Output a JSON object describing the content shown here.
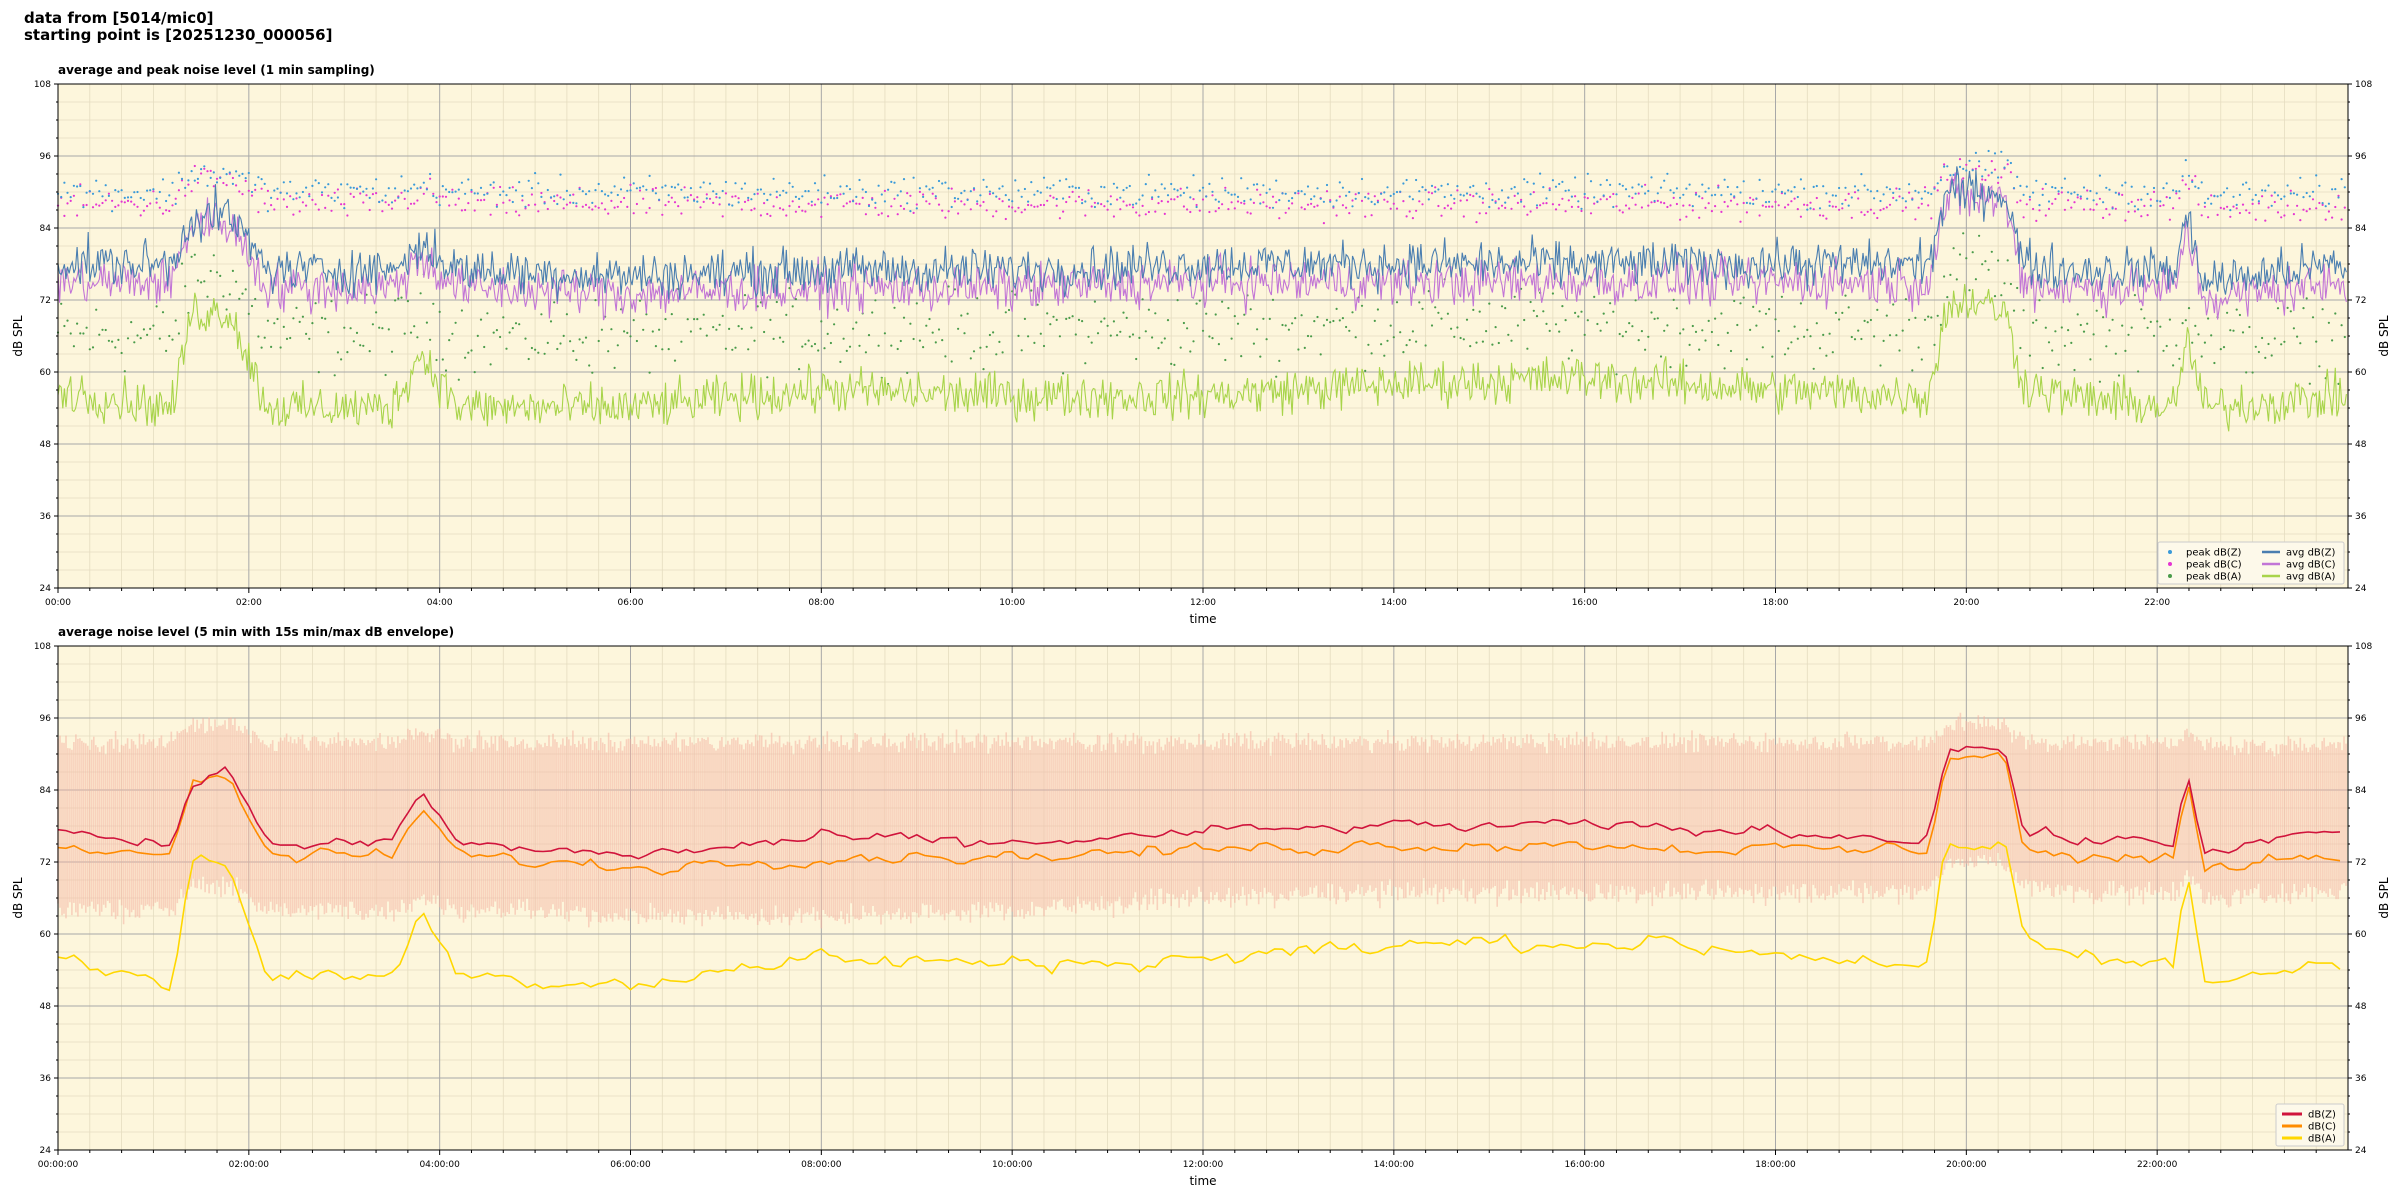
{
  "header": {
    "line1": "data from [5014/mic0]",
    "line2": "starting point is [20251230_000056]"
  },
  "colors": {
    "plot_bg": "#fdf6dc",
    "grid_major": "#a8a8a8",
    "grid_minor": "#e5dcc0",
    "peak_z": "#3a9ad9",
    "peak_c": "#e535d2",
    "peak_a": "#4a9b4a",
    "avg_z": "#4a7eb0",
    "avg_c": "#c275d6",
    "avg_a": "#a8d44a",
    "dbz": "#d0143c",
    "dbc": "#ff8c00",
    "dba": "#ffd700",
    "envelope": "#f4b2a3"
  },
  "chart_data": [
    {
      "type": "line",
      "title": "average and peak noise level (1 min sampling)",
      "xlabel": "time",
      "ylabel": "dB SPL",
      "x_range_hours": [
        0,
        24
      ],
      "ylim": [
        24,
        108
      ],
      "y_ticks": [
        "24",
        "36",
        "48",
        "60",
        "72",
        "84",
        "96",
        "108"
      ],
      "x_ticks": [
        "00:00",
        "02:00",
        "04:00",
        "06:00",
        "08:00",
        "10:00",
        "12:00",
        "14:00",
        "16:00",
        "18:00",
        "20:00",
        "22:00"
      ],
      "grid": true,
      "legend_position": "lower-right",
      "legend": [
        "peak dB(Z)",
        "peak dB(C)",
        "peak dB(A)",
        "avg dB(Z)",
        "avg dB(C)",
        "avg dB(A)"
      ],
      "series": [
        {
          "name": "avg dB(Z)",
          "style": "line",
          "hours": [
            0,
            1.2,
            1.4,
            1.8,
            2.2,
            3.5,
            3.8,
            4.2,
            6,
            8,
            10,
            12,
            14,
            16,
            18,
            19.6,
            19.8,
            20.1,
            20.4,
            20.6,
            21,
            22.2,
            22.3,
            22.5,
            23.98
          ],
          "values": [
            78,
            78,
            86,
            86,
            77,
            77,
            81,
            77,
            76,
            77,
            77,
            78,
            78,
            78,
            78,
            78,
            90,
            90,
            90,
            78,
            77,
            77,
            86,
            75,
            78
          ]
        },
        {
          "name": "avg dB(C)",
          "style": "line",
          "hours": [
            0,
            1.2,
            1.4,
            1.8,
            2.2,
            3.5,
            3.8,
            4.2,
            6,
            8,
            10,
            12,
            14,
            16,
            18,
            19.6,
            19.8,
            20.1,
            20.4,
            20.6,
            21,
            22.2,
            22.3,
            22.5,
            23.98
          ],
          "values": [
            75,
            75,
            85,
            85,
            74,
            74,
            79,
            74,
            73,
            74,
            74,
            75,
            75,
            75,
            75,
            75,
            89,
            89,
            89,
            75,
            74,
            74,
            84,
            72,
            75
          ]
        },
        {
          "name": "avg dB(A)",
          "style": "line",
          "hours": [
            0,
            1.2,
            1.4,
            1.8,
            2.2,
            3.5,
            3.8,
            4.2,
            6,
            8,
            10,
            12,
            14,
            16,
            18,
            19.6,
            19.8,
            20.1,
            20.4,
            20.6,
            21,
            22.2,
            22.3,
            22.5,
            23.98
          ],
          "values": [
            57,
            54,
            70,
            70,
            54,
            54,
            63,
            54,
            54,
            57,
            56,
            56,
            58,
            59,
            57,
            56,
            71,
            72,
            70,
            58,
            56,
            54,
            66,
            54,
            56
          ]
        },
        {
          "name": "peak dB(Z)",
          "style": "dots",
          "hours": [
            0,
            1.2,
            1.4,
            1.8,
            2.2,
            3.5,
            3.8,
            4.2,
            6,
            8,
            10,
            12,
            14,
            16,
            18,
            19.6,
            19.8,
            20.1,
            20.4,
            20.6,
            21,
            22.2,
            22.3,
            22.5,
            23.98
          ],
          "values": [
            90,
            90,
            93,
            93,
            90,
            90,
            91,
            90,
            90,
            90,
            90,
            90,
            90,
            90,
            90,
            90,
            94,
            94,
            94,
            90,
            90,
            90,
            93,
            89,
            90
          ]
        },
        {
          "name": "peak dB(C)",
          "style": "dots",
          "hours": [
            0,
            1.2,
            1.4,
            1.8,
            2.2,
            3.5,
            3.8,
            4.2,
            6,
            8,
            10,
            12,
            14,
            16,
            18,
            19.6,
            19.8,
            20.1,
            20.4,
            20.6,
            21,
            22.2,
            22.3,
            22.5,
            23.98
          ],
          "values": [
            88,
            88,
            92,
            92,
            88,
            88,
            90,
            88,
            88,
            88,
            88,
            88,
            88,
            88,
            88,
            88,
            93,
            93,
            93,
            88,
            88,
            88,
            92,
            87,
            88
          ]
        },
        {
          "name": "peak dB(A)",
          "style": "dots",
          "hours": [
            0,
            1.2,
            1.4,
            1.8,
            2.2,
            3.5,
            3.8,
            4.2,
            6,
            8,
            10,
            12,
            14,
            16,
            18,
            19.6,
            19.8,
            20.1,
            20.4,
            20.6,
            21,
            22.2,
            22.3,
            22.5,
            23.98
          ],
          "values": [
            66,
            66,
            76,
            76,
            66,
            66,
            70,
            66,
            66,
            67,
            67,
            67,
            68,
            68,
            67,
            67,
            77,
            77,
            76,
            67,
            66,
            66,
            72,
            65,
            66
          ]
        }
      ]
    },
    {
      "type": "line",
      "title": "average noise level (5 min with 15s min/max dB envelope)",
      "xlabel": "time",
      "ylabel": "dB SPL",
      "x_range_hours": [
        0,
        24
      ],
      "ylim": [
        24,
        108
      ],
      "y_ticks": [
        "24",
        "36",
        "48",
        "60",
        "72",
        "84",
        "96",
        "108"
      ],
      "x_ticks": [
        "00:00:00",
        "02:00:00",
        "04:00:00",
        "06:00:00",
        "08:00:00",
        "10:00:00",
        "12:00:00",
        "14:00:00",
        "16:00:00",
        "18:00:00",
        "20:00:00",
        "22:00:00"
      ],
      "grid": true,
      "legend_position": "lower-right",
      "legend": [
        "dB(Z)",
        "dB(C)",
        "dB(A)"
      ],
      "envelope": {
        "hours": [
          0,
          1.2,
          1.4,
          1.8,
          2.2,
          3.5,
          3.8,
          4.2,
          6,
          8,
          10,
          12,
          14,
          16,
          18,
          19.6,
          19.8,
          20.1,
          20.4,
          20.6,
          21,
          22.2,
          22.3,
          22.5,
          23.98
        ],
        "min": [
          64,
          64,
          68,
          68,
          64,
          64,
          66,
          64,
          63,
          63,
          64,
          66,
          67,
          67,
          67,
          67,
          72,
          72,
          72,
          68,
          67,
          67,
          70,
          66,
          67
        ],
        "max": [
          92,
          92,
          95,
          95,
          92,
          92,
          94,
          92,
          92,
          92,
          92,
          92,
          92,
          92,
          92,
          92,
          95,
          95,
          95,
          92,
          92,
          92,
          94,
          91,
          92
        ]
      },
      "series": [
        {
          "name": "dB(Z)",
          "hours": [
            0,
            1.2,
            1.4,
            1.8,
            2.2,
            3.5,
            3.8,
            4.2,
            6,
            8,
            10,
            12,
            14,
            16,
            18,
            19.6,
            19.8,
            20.1,
            20.4,
            20.6,
            21,
            22.2,
            22.3,
            22.5,
            23.98
          ],
          "values": [
            77,
            75,
            86,
            87,
            75,
            75,
            84,
            75,
            73,
            76,
            75,
            77,
            78,
            78,
            77,
            76,
            91,
            91,
            91,
            77,
            76,
            75,
            88,
            74,
            77
          ]
        },
        {
          "name": "dB(C)",
          "hours": [
            0,
            1.2,
            1.4,
            1.8,
            2.2,
            3.5,
            3.8,
            4.2,
            6,
            8,
            10,
            12,
            14,
            16,
            18,
            19.6,
            19.8,
            20.1,
            20.4,
            20.6,
            21,
            22.2,
            22.3,
            22.5,
            23.98
          ],
          "values": [
            75,
            73,
            85,
            86,
            73,
            73,
            81,
            73,
            71,
            73,
            73,
            74,
            75,
            75,
            74,
            74,
            90,
            90,
            90,
            74,
            73,
            72,
            86,
            71,
            74
          ]
        },
        {
          "name": "dB(A)",
          "hours": [
            0,
            1.2,
            1.4,
            1.8,
            2.2,
            3.5,
            3.8,
            4.2,
            6,
            8,
            10,
            12,
            14,
            16,
            18,
            19.6,
            19.8,
            20.1,
            20.4,
            20.6,
            21,
            22.2,
            22.3,
            22.5,
            23.98
          ],
          "values": [
            57,
            51,
            72,
            72,
            53,
            53,
            64,
            53,
            52,
            56,
            55,
            56,
            58,
            59,
            57,
            55,
            75,
            73,
            75,
            58,
            57,
            54,
            72,
            52,
            56
          ]
        }
      ]
    }
  ]
}
